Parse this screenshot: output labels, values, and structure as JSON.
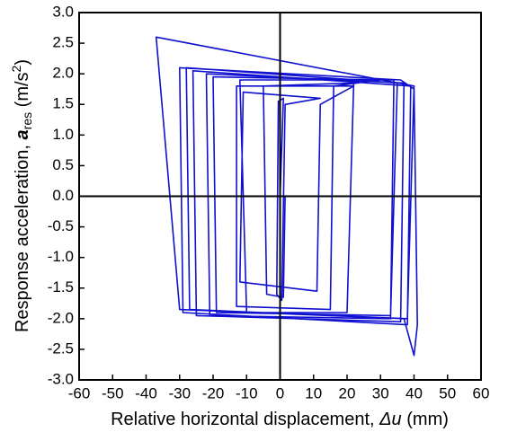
{
  "chart_data": {
    "type": "line",
    "xlabel_parts": [
      "Relative horizontal displacement, ",
      "Δu",
      " (mm)"
    ],
    "ylabel_parts": [
      "Response acceleration, ",
      "a",
      "res",
      " (m/s",
      "2",
      ")"
    ],
    "x": [
      0,
      1,
      -0.5,
      -1,
      0.5,
      1.5,
      12,
      -11,
      -12,
      11,
      12,
      22,
      -13,
      -13,
      15,
      16,
      30,
      -20,
      -19,
      33,
      35,
      -28,
      -27,
      38,
      40,
      -37,
      -30,
      37,
      40,
      41,
      40,
      36,
      -30,
      -29,
      38,
      39,
      -26,
      -25,
      36,
      37,
      -22,
      -21,
      33,
      34,
      -12,
      -10,
      20,
      22,
      -5,
      -4,
      1,
      1.5
    ],
    "series": [
      {
        "color": "#1010d0",
        "values": [
          0,
          1.6,
          1.55,
          -1.6,
          -1.7,
          1.5,
          1.6,
          1.7,
          -1.4,
          -1.55,
          1.5,
          1.8,
          1.8,
          -1.8,
          -1.85,
          1.8,
          1.9,
          1.95,
          -1.9,
          -1.95,
          1.85,
          2.1,
          -1.85,
          -2.0,
          1.8,
          2.6,
          -1.85,
          -2.0,
          -2.6,
          -2.1,
          1.75,
          1.9,
          2.1,
          -1.9,
          -2.1,
          1.8,
          2.05,
          -1.95,
          -2.05,
          1.85,
          2.0,
          -1.95,
          -2.0,
          1.9,
          1.9,
          -1.9,
          -1.9,
          1.85,
          1.8,
          -1.6,
          -1.65,
          0
        ]
      }
    ],
    "xlim": [
      -60,
      60
    ],
    "xticks": [
      -60,
      -50,
      -40,
      -30,
      -20,
      -10,
      0,
      10,
      20,
      30,
      40,
      50,
      60
    ],
    "ylim": [
      -3,
      3
    ],
    "yticks": [
      {
        "value": -3,
        "label": "-3.0"
      },
      -2.5,
      {
        "value": -2,
        "label": "-2.0"
      },
      -1.5,
      {
        "value": -1,
        "label": "-1.0"
      },
      -0.5,
      {
        "value": 0,
        "label": "0.0"
      },
      0.5,
      {
        "value": 1,
        "label": "1.0"
      },
      1.5,
      {
        "value": 2,
        "label": "2.0"
      },
      2.5,
      {
        "value": 3,
        "label": "3.0"
      }
    ],
    "zero_lines": true
  }
}
